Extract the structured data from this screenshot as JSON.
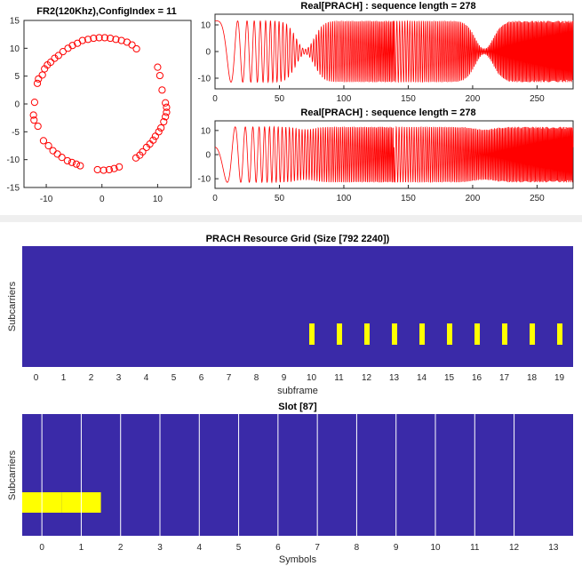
{
  "colors": {
    "signal": "#ff0000",
    "grid_bg": "#3a2aa8",
    "allocated": "#ffff00",
    "slot_line": "#ffffff"
  },
  "chart_data": [
    {
      "type": "scatter",
      "title": "FR2(120Khz),ConfigIndex = 11",
      "xlim": [
        -14,
        16
      ],
      "ylim": [
        -15,
        15
      ],
      "xticks": [
        -10,
        0,
        10
      ],
      "yticks": [
        15,
        10,
        5,
        0,
        -5,
        -10,
        -15
      ],
      "marker": "circle-open",
      "points": [
        [
          -1.5,
          11.8
        ],
        [
          -0.5,
          11.9
        ],
        [
          0.5,
          11.9
        ],
        [
          1.5,
          11.8
        ],
        [
          2.5,
          11.6
        ],
        [
          3.5,
          11.4
        ],
        [
          4.5,
          11.1
        ],
        [
          5.4,
          10.6
        ],
        [
          6.2,
          9.9
        ],
        [
          -2.5,
          11.6
        ],
        [
          -3.5,
          11.4
        ],
        [
          -4.4,
          10.9
        ],
        [
          -5.3,
          10.5
        ],
        [
          -6.1,
          10.0
        ],
        [
          -7.0,
          9.4
        ],
        [
          -7.8,
          8.7
        ],
        [
          -8.5,
          8.2
        ],
        [
          -9.2,
          7.5
        ],
        [
          -9.8,
          7.0
        ],
        [
          -10.3,
          6.3
        ],
        [
          -10.7,
          5.2
        ],
        [
          -11.4,
          4.5
        ],
        [
          -11.6,
          3.7
        ],
        [
          -12.1,
          0.3
        ],
        [
          -12.3,
          -2.0
        ],
        [
          -12.2,
          -2.9
        ],
        [
          -11.5,
          -4.0
        ],
        [
          -10.5,
          -6.6
        ],
        [
          -9.6,
          -7.5
        ],
        [
          -8.8,
          -8.4
        ],
        [
          -8.0,
          -9.0
        ],
        [
          -7.2,
          -9.6
        ],
        [
          -6.2,
          -10.2
        ],
        [
          -5.4,
          -10.5
        ],
        [
          -4.6,
          -10.8
        ],
        [
          -3.9,
          -11.1
        ],
        [
          -0.8,
          -11.8
        ],
        [
          0.3,
          -11.9
        ],
        [
          1.3,
          -11.8
        ],
        [
          2.2,
          -11.6
        ],
        [
          3.1,
          -11.3
        ],
        [
          10.0,
          6.6
        ],
        [
          10.4,
          5.1
        ],
        [
          10.8,
          2.5
        ],
        [
          11.4,
          0.2
        ],
        [
          11.6,
          -0.6
        ],
        [
          11.6,
          -1.5
        ],
        [
          11.4,
          -2.3
        ],
        [
          11.1,
          -3.2
        ],
        [
          10.6,
          -4.3
        ],
        [
          10.2,
          -5.0
        ],
        [
          9.6,
          -5.8
        ],
        [
          9.2,
          -6.5
        ],
        [
          8.6,
          -7.2
        ],
        [
          8.0,
          -7.8
        ],
        [
          7.3,
          -8.6
        ],
        [
          6.8,
          -9.2
        ],
        [
          6.1,
          -9.7
        ]
      ]
    },
    {
      "type": "line",
      "title": "Real[PRACH] : sequence length = 278",
      "xlim": [
        0,
        278
      ],
      "ylim": [
        -14,
        14
      ],
      "xticks": [
        0,
        50,
        100,
        150,
        200,
        250
      ],
      "yticks": [
        10,
        0,
        -10
      ]
    },
    {
      "type": "line",
      "title": "Real[PRACH] : sequence length = 278",
      "xlim": [
        0,
        278
      ],
      "ylim": [
        -14,
        14
      ],
      "xticks": [
        0,
        50,
        100,
        150,
        200,
        250
      ],
      "yticks": [
        10,
        0,
        -10
      ]
    },
    {
      "type": "heatmap",
      "title": "PRACH Resource Grid (Size [792 2240])",
      "xlabel": "subframe",
      "ylabel": "Subcarriers",
      "xticks": [
        "0",
        "1",
        "2",
        "3",
        "4",
        "5",
        "6",
        "7",
        "8",
        "9",
        "10",
        "11",
        "12",
        "13",
        "14",
        "15",
        "16",
        "17",
        "18",
        "19"
      ],
      "allocated_subframes": [
        10,
        11,
        12,
        13,
        14,
        15,
        16,
        17,
        18,
        19
      ]
    },
    {
      "type": "heatmap",
      "title": "Slot [87]",
      "xlabel": "Symbols",
      "ylabel": "Subcarriers",
      "xticks": [
        "0",
        "1",
        "2",
        "3",
        "4",
        "5",
        "6",
        "7",
        "8",
        "9",
        "10",
        "11",
        "12",
        "13"
      ],
      "allocated_symbols": [
        0,
        1
      ]
    }
  ]
}
